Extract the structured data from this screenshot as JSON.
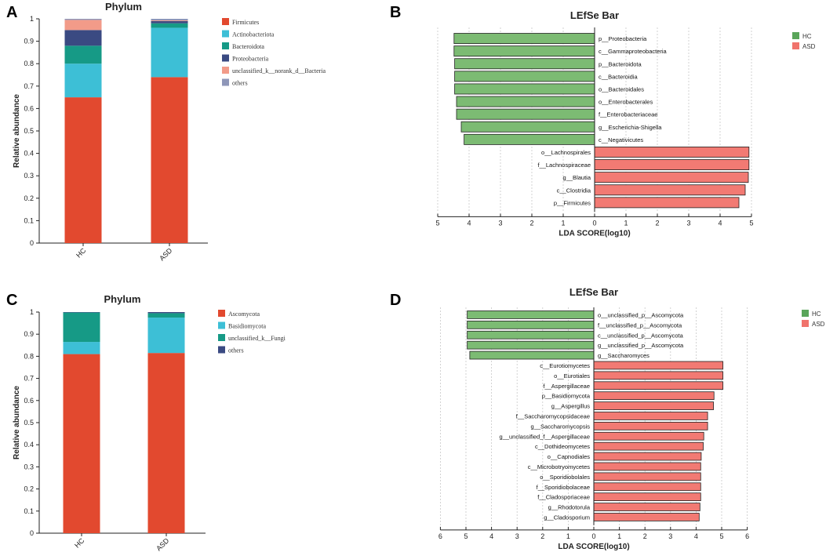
{
  "colors": {
    "firmicutes": "#e2492f",
    "actino": "#3dbfd6",
    "bacteroidota": "#169a86",
    "proteo": "#3a4a82",
    "unclassified": "#f29b89",
    "others": "#8e96b8",
    "hc": "#7cbb73",
    "asd": "#f27a73",
    "hc_legend": "#5aa55a",
    "asd_legend": "#f0736c"
  },
  "chart_data": [
    {
      "id": "A",
      "type": "bar",
      "stacked": true,
      "panel_letter": "A",
      "title": "Phylum",
      "ylabel": "Relative abundance",
      "xlabel": "",
      "ylim": [
        0,
        1
      ],
      "yticks": [
        "0",
        "0.1",
        "0.2",
        "0.3",
        "0.4",
        "0.5",
        "0.6",
        "0.7",
        "0.8",
        "0.9",
        "1"
      ],
      "categories": [
        "HC",
        "ASD"
      ],
      "series": [
        {
          "name": "Firmicutes",
          "color_key": "firmicutes",
          "values": [
            0.65,
            0.74
          ]
        },
        {
          "name": "Actinobacteriota",
          "color_key": "actino",
          "values": [
            0.15,
            0.22
          ]
        },
        {
          "name": "Bacteroidota",
          "color_key": "bacteroidota",
          "values": [
            0.08,
            0.02
          ]
        },
        {
          "name": "Proteobacteria",
          "color_key": "proteo",
          "values": [
            0.07,
            0.01
          ]
        },
        {
          "name": "unclassified_k__norank_d__Bacteria",
          "color_key": "unclassified",
          "values": [
            0.045,
            0.003
          ]
        },
        {
          "name": "others",
          "color_key": "others",
          "values": [
            0.005,
            0.007
          ]
        }
      ]
    },
    {
      "id": "B",
      "type": "bar",
      "orientation": "horizontal",
      "panel_letter": "B",
      "title": "LEfSe Bar",
      "xlabel": "LDA SCORE(log10)",
      "xlim": [
        -5,
        5
      ],
      "xticks": [
        "5",
        "4",
        "3",
        "2",
        "1",
        "0",
        "1",
        "2",
        "3",
        "4",
        "5"
      ],
      "legend": [
        "HC",
        "ASD"
      ],
      "features": [
        {
          "label": "p__Proteobacteria",
          "group": "HC",
          "value": 4.48
        },
        {
          "label": "c__Gammaproteobacteria",
          "group": "HC",
          "value": 4.48
        },
        {
          "label": "p__Bacteroidota",
          "group": "HC",
          "value": 4.46
        },
        {
          "label": "c__Bacteroidia",
          "group": "HC",
          "value": 4.46
        },
        {
          "label": "o__Bacteroidales",
          "group": "HC",
          "value": 4.46
        },
        {
          "label": "o__Enterobacterales",
          "group": "HC",
          "value": 4.4
        },
        {
          "label": "f__Enterobacteriaceae",
          "group": "HC",
          "value": 4.4
        },
        {
          "label": "g__Escherichia-Shigella",
          "group": "HC",
          "value": 4.25
        },
        {
          "label": "c__Negativicutes",
          "group": "HC",
          "value": 4.16
        },
        {
          "label": "o__Lachnospirales",
          "group": "ASD",
          "value": 4.92
        },
        {
          "label": "f__Lachnospiraceae",
          "group": "ASD",
          "value": 4.92
        },
        {
          "label": "g__Blautia",
          "group": "ASD",
          "value": 4.9
        },
        {
          "label": "c__Clostridia",
          "group": "ASD",
          "value": 4.8
        },
        {
          "label": "p__Firmicutes",
          "group": "ASD",
          "value": 4.6
        }
      ]
    },
    {
      "id": "C",
      "type": "bar",
      "stacked": true,
      "panel_letter": "C",
      "title": "Phylum",
      "ylabel": "Relative abundance",
      "xlabel": "",
      "ylim": [
        0,
        1
      ],
      "yticks": [
        "0",
        "0.1",
        "0.2",
        "0.3",
        "0.4",
        "0.5",
        "0.6",
        "0.7",
        "0.8",
        "0.9",
        "1"
      ],
      "categories": [
        "HC",
        "ASD"
      ],
      "series": [
        {
          "name": "Ascomycota",
          "color_key": "firmicutes",
          "values": [
            0.81,
            0.815
          ]
        },
        {
          "name": "Basidiomycota",
          "color_key": "actino",
          "values": [
            0.055,
            0.16
          ]
        },
        {
          "name": "unclassified_k__Fungi",
          "color_key": "bacteroidota",
          "values": [
            0.133,
            0.02
          ]
        },
        {
          "name": "others",
          "color_key": "proteo",
          "values": [
            0.002,
            0.005
          ]
        }
      ]
    },
    {
      "id": "D",
      "type": "bar",
      "orientation": "horizontal",
      "panel_letter": "D",
      "title": "LEfSe Bar",
      "xlabel": "LDA SCORE(log10)",
      "xlim": [
        -6,
        6
      ],
      "xticks": [
        "6",
        "5",
        "4",
        "3",
        "2",
        "1",
        "0",
        "1",
        "2",
        "3",
        "4",
        "5",
        "6"
      ],
      "legend": [
        "HC",
        "ASD"
      ],
      "features": [
        {
          "label": "o__unclassified_p__Ascomycota",
          "group": "HC",
          "value": 4.95
        },
        {
          "label": "f__unclassified_p__Ascomycota",
          "group": "HC",
          "value": 4.95
        },
        {
          "label": "c__unclassified_p__Ascomycota",
          "group": "HC",
          "value": 4.95
        },
        {
          "label": "g__unclassified_p__Ascomycota",
          "group": "HC",
          "value": 4.95
        },
        {
          "label": "g__Saccharomyces",
          "group": "HC",
          "value": 4.85
        },
        {
          "label": "c__Eurotiomycetes",
          "group": "ASD",
          "value": 5.05
        },
        {
          "label": "o__Eurotiales",
          "group": "ASD",
          "value": 5.05
        },
        {
          "label": "f__Aspergillaceae",
          "group": "ASD",
          "value": 5.05
        },
        {
          "label": "p__Basidiomycota",
          "group": "ASD",
          "value": 4.7
        },
        {
          "label": "g__Aspergillus",
          "group": "ASD",
          "value": 4.68
        },
        {
          "label": "f__Saccharomycopsidaceae",
          "group": "ASD",
          "value": 4.45
        },
        {
          "label": "g__Saccharomycopsis",
          "group": "ASD",
          "value": 4.45
        },
        {
          "label": "g__unclassified_f__Aspergillaceae",
          "group": "ASD",
          "value": 4.3
        },
        {
          "label": "c__Dothideomycetes",
          "group": "ASD",
          "value": 4.28
        },
        {
          "label": "o__Capnodiales",
          "group": "ASD",
          "value": 4.2
        },
        {
          "label": "c__Microbotryomycetes",
          "group": "ASD",
          "value": 4.18
        },
        {
          "label": "o__Sporidiobolales",
          "group": "ASD",
          "value": 4.18
        },
        {
          "label": "f__Sporidiobolaceae",
          "group": "ASD",
          "value": 4.18
        },
        {
          "label": "f__Cladosporiaceae",
          "group": "ASD",
          "value": 4.18
        },
        {
          "label": "g__Rhodotorula",
          "group": "ASD",
          "value": 4.15
        },
        {
          "label": "g__Cladosporium",
          "group": "ASD",
          "value": 4.12
        }
      ]
    }
  ]
}
